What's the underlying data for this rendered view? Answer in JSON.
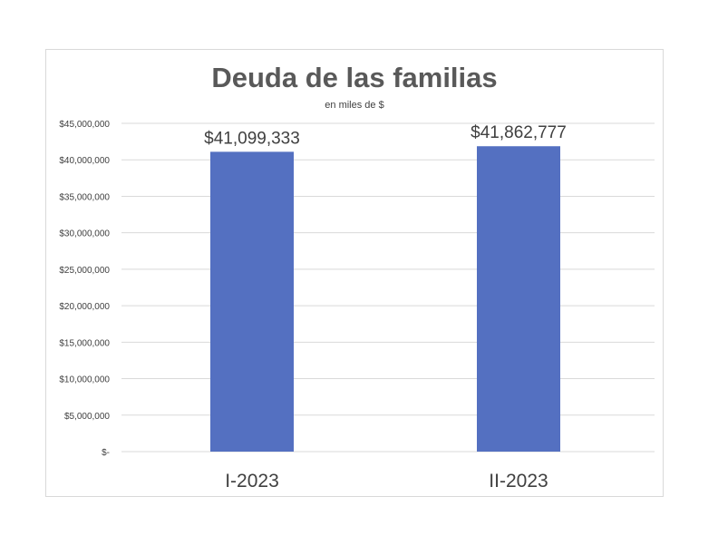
{
  "chart_data": {
    "type": "bar",
    "title": "Deuda de las familias",
    "subtitle": "en miles de $",
    "categories": [
      "I-2023",
      "II-2023"
    ],
    "values": [
      41099333,
      41862777
    ],
    "data_labels": [
      "$41,099,333",
      "$41,862,777"
    ],
    "ylim": [
      0,
      45000000
    ],
    "yticks": [
      0,
      5000000,
      10000000,
      15000000,
      20000000,
      25000000,
      30000000,
      35000000,
      40000000,
      45000000
    ],
    "ytick_labels": [
      "$-",
      "$5,000,000",
      "$10,000,000",
      "$15,000,000",
      "$20,000,000",
      "$25,000,000",
      "$30,000,000",
      "$35,000,000",
      "$40,000,000",
      "$45,000,000"
    ],
    "grid": true,
    "bar_color": "#5470C1",
    "xlabel": "",
    "ylabel": ""
  }
}
